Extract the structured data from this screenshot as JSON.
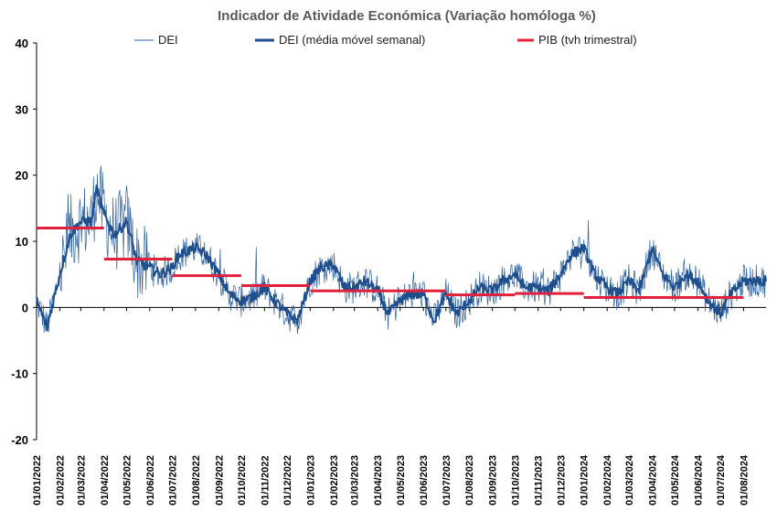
{
  "chart_data": {
    "type": "line",
    "title": "Indicador de Atividade Económica (Variação homóloga %)",
    "xlabel": "",
    "ylabel": "",
    "ylim": [
      -20,
      40
    ],
    "yticks": [
      40,
      30,
      20,
      10,
      0,
      -10,
      -20
    ],
    "x_ticks": [
      "01/01/2022",
      "01/02/2022",
      "01/03/2022",
      "01/04/2022",
      "01/05/2022",
      "01/06/2022",
      "01/07/2022",
      "01/08/2022",
      "01/09/2022",
      "01/10/2022",
      "01/11/2022",
      "01/12/2022",
      "01/01/2023",
      "01/02/2023",
      "01/03/2023",
      "01/04/2023",
      "01/05/2023",
      "01/06/2023",
      "01/07/2023",
      "01/08/2023",
      "01/09/2023",
      "01/10/2023",
      "01/11/2023",
      "01/12/2023",
      "01/01/2024",
      "01/02/2024",
      "01/03/2024",
      "01/04/2024",
      "01/05/2024",
      "01/06/2024",
      "01/07/2024",
      "01/08/2024"
    ],
    "grid": false,
    "legend_position": "top",
    "legend": [
      {
        "name": "DEI",
        "color": "#2e5f9e"
      },
      {
        "name": "DEI (média móvel semanal)",
        "color": "#1f4e8c"
      },
      {
        "name": "PIB (tvh trimestral)",
        "color": "#e0203c"
      }
    ],
    "series": [
      {
        "name": "DEI (média móvel semanal)",
        "role": "weekly_ma",
        "color": "#1f4e8c",
        "points": [
          [
            "01/01/2022",
            1.0
          ],
          [
            "15/01/2022",
            -3.0
          ],
          [
            "01/02/2022",
            5.0
          ],
          [
            "15/02/2022",
            11.0
          ],
          [
            "01/03/2022",
            13.0
          ],
          [
            "15/03/2022",
            13.0
          ],
          [
            "22/03/2022",
            18.0
          ],
          [
            "01/04/2022",
            14.0
          ],
          [
            "15/04/2022",
            11.0
          ],
          [
            "01/05/2022",
            13.0
          ],
          [
            "15/05/2022",
            7.0
          ],
          [
            "01/06/2022",
            6.0
          ],
          [
            "15/06/2022",
            5.0
          ],
          [
            "01/07/2022",
            6.0
          ],
          [
            "10/07/2022",
            8.0
          ],
          [
            "01/08/2022",
            9.0
          ],
          [
            "15/08/2022",
            8.0
          ],
          [
            "01/09/2022",
            5.0
          ],
          [
            "15/09/2022",
            2.0
          ],
          [
            "01/10/2022",
            1.0
          ],
          [
            "15/10/2022",
            1.5
          ],
          [
            "01/11/2022",
            3.0
          ],
          [
            "15/11/2022",
            1.0
          ],
          [
            "01/12/2022",
            -1.0
          ],
          [
            "15/12/2022",
            -2.0
          ],
          [
            "01/01/2023",
            4.0
          ],
          [
            "15/01/2023",
            6.0
          ],
          [
            "01/02/2023",
            6.5
          ],
          [
            "15/02/2023",
            3.0
          ],
          [
            "01/03/2023",
            3.0
          ],
          [
            "15/03/2023",
            4.0
          ],
          [
            "01/04/2023",
            2.5
          ],
          [
            "15/04/2023",
            -1.0
          ],
          [
            "01/05/2023",
            1.0
          ],
          [
            "15/05/2023",
            2.0
          ],
          [
            "01/06/2023",
            2.0
          ],
          [
            "15/06/2023",
            -2.0
          ],
          [
            "01/07/2023",
            2.0
          ],
          [
            "15/07/2023",
            -1.0
          ],
          [
            "01/08/2023",
            1.0
          ],
          [
            "15/08/2023",
            3.0
          ],
          [
            "01/09/2023",
            2.5
          ],
          [
            "15/09/2023",
            4.0
          ],
          [
            "01/10/2023",
            5.0
          ],
          [
            "15/10/2023",
            3.0
          ],
          [
            "01/11/2023",
            3.0
          ],
          [
            "15/11/2023",
            2.5
          ],
          [
            "01/12/2023",
            5.0
          ],
          [
            "15/12/2023",
            8.0
          ],
          [
            "01/01/2024",
            9.0
          ],
          [
            "15/01/2024",
            5.0
          ],
          [
            "01/02/2024",
            3.0
          ],
          [
            "15/02/2024",
            2.0
          ],
          [
            "01/03/2024",
            4.0
          ],
          [
            "15/03/2024",
            2.5
          ],
          [
            "01/04/2024",
            9.0
          ],
          [
            "15/04/2024",
            5.0
          ],
          [
            "01/05/2024",
            3.0
          ],
          [
            "15/05/2024",
            5.0
          ],
          [
            "01/06/2024",
            4.0
          ],
          [
            "15/06/2024",
            1.0
          ],
          [
            "01/07/2024",
            -1.0
          ],
          [
            "15/07/2024",
            2.0
          ],
          [
            "01/08/2024",
            4.0
          ],
          [
            "15/08/2024",
            4.0
          ]
        ]
      },
      {
        "name": "PIB (tvh trimestral)",
        "role": "step",
        "color": "#e0203c",
        "segments": [
          {
            "from": "01/01/2022",
            "to": "01/04/2022",
            "value": 12.0
          },
          {
            "from": "01/04/2022",
            "to": "01/07/2022",
            "value": 7.3
          },
          {
            "from": "01/07/2022",
            "to": "01/10/2022",
            "value": 4.8
          },
          {
            "from": "01/10/2022",
            "to": "01/01/2023",
            "value": 3.3
          },
          {
            "from": "01/01/2023",
            "to": "01/07/2023",
            "value": 2.5
          },
          {
            "from": "01/07/2023",
            "to": "01/10/2023",
            "value": 1.9
          },
          {
            "from": "01/10/2023",
            "to": "01/01/2024",
            "value": 2.1
          },
          {
            "from": "01/01/2024",
            "to": "01/08/2024",
            "value": 1.5
          }
        ]
      }
    ]
  }
}
